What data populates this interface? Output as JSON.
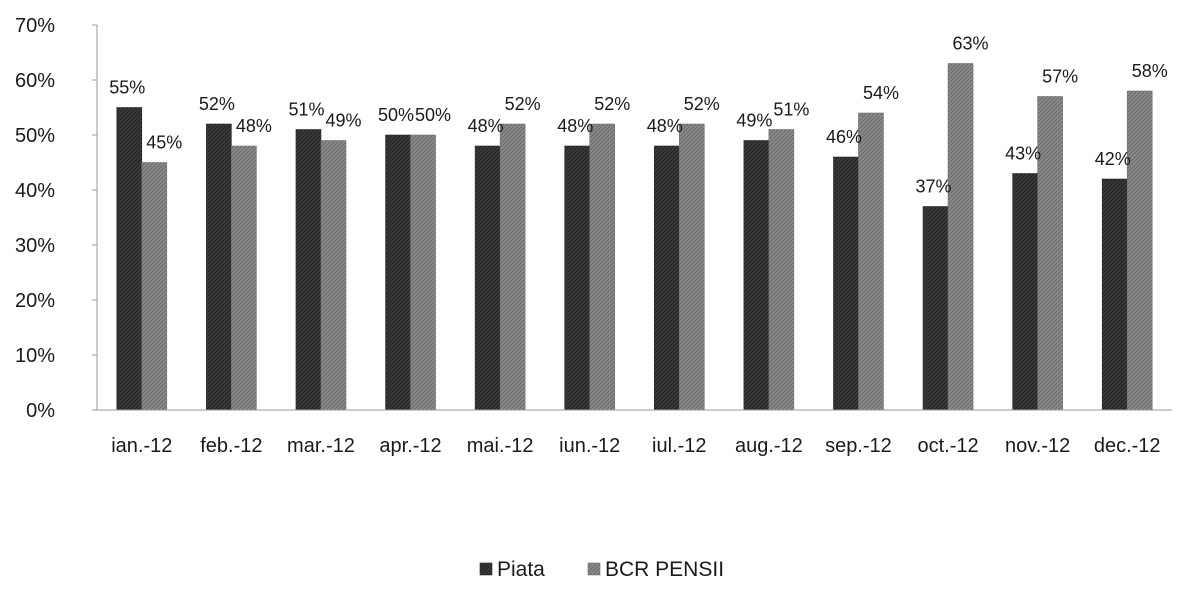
{
  "chart_data": {
    "type": "bar",
    "categories": [
      "ian.-12",
      "feb.-12",
      "mar.-12",
      "apr.-12",
      "mai.-12",
      "iun.-12",
      "iul.-12",
      "aug.-12",
      "sep.-12",
      "oct.-12",
      "nov.-12",
      "dec.-12"
    ],
    "series": [
      {
        "name": "Piata",
        "values": [
          55,
          52,
          51,
          50,
          48,
          48,
          48,
          49,
          46,
          37,
          43,
          42
        ],
        "labels": [
          "55%",
          "52%",
          "51%",
          "50%",
          "48%",
          "48%",
          "48%",
          "49%",
          "46%",
          "37%",
          "43%",
          "42%"
        ],
        "color": "#3a3a3a"
      },
      {
        "name": "BCR PENSII",
        "values": [
          45,
          48,
          49,
          50,
          52,
          52,
          52,
          51,
          54,
          63,
          57,
          58
        ],
        "labels": [
          "45%",
          "48%",
          "49%",
          "50%",
          "52%",
          "52%",
          "52%",
          "51%",
          "54%",
          "63%",
          "57%",
          "58%"
        ],
        "color": "#8a8a8a"
      }
    ],
    "y_ticks": [
      "0%",
      "10%",
      "20%",
      "30%",
      "40%",
      "50%",
      "60%",
      "70%"
    ],
    "ylim": [
      0,
      70
    ],
    "grid": false,
    "legend_position": "bottom"
  }
}
